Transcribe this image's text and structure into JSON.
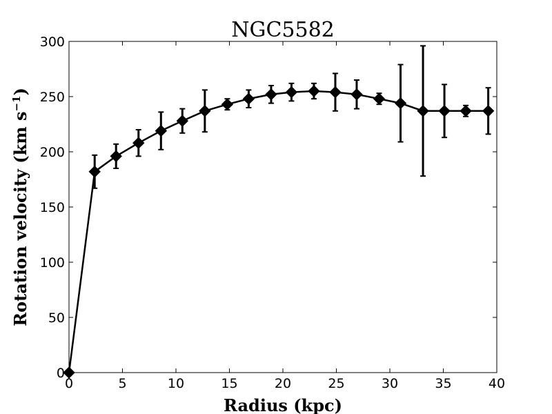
{
  "chart_data": {
    "type": "line",
    "title": "NGC5582",
    "xlabel": "Radius (kpc)",
    "ylabel": "Rotation velocity (km s",
    "ylabel_unit_exponent": "−1",
    "ylabel_close": ")",
    "xlim": [
      0,
      40
    ],
    "ylim": [
      0,
      300
    ],
    "xticks": [
      0,
      5,
      10,
      15,
      20,
      25,
      30,
      35,
      40
    ],
    "yticks": [
      0,
      50,
      100,
      150,
      200,
      250,
      300
    ],
    "grid": false,
    "legend": "none",
    "colors": {
      "line": "#000000",
      "marker": "#000000",
      "errorbar": "#000000",
      "axes": "#000000",
      "background": "#ffffff"
    },
    "series": [
      {
        "marker": "diamond",
        "x": [
          0,
          2.4,
          4.4,
          6.5,
          8.6,
          10.6,
          12.7,
          14.8,
          16.8,
          18.9,
          20.8,
          22.9,
          24.9,
          26.9,
          29.0,
          31.0,
          33.1,
          35.1,
          37.1,
          39.2
        ],
        "y": [
          0,
          182,
          196,
          208,
          219,
          228,
          237,
          243,
          248,
          252,
          254,
          255,
          254,
          252,
          248,
          244,
          237,
          237,
          237,
          237
        ],
        "yerr": [
          0,
          15,
          11,
          12,
          17,
          11,
          19,
          5,
          8,
          8,
          8,
          7,
          17,
          13,
          5,
          35,
          59,
          24,
          5,
          21
        ]
      }
    ]
  }
}
